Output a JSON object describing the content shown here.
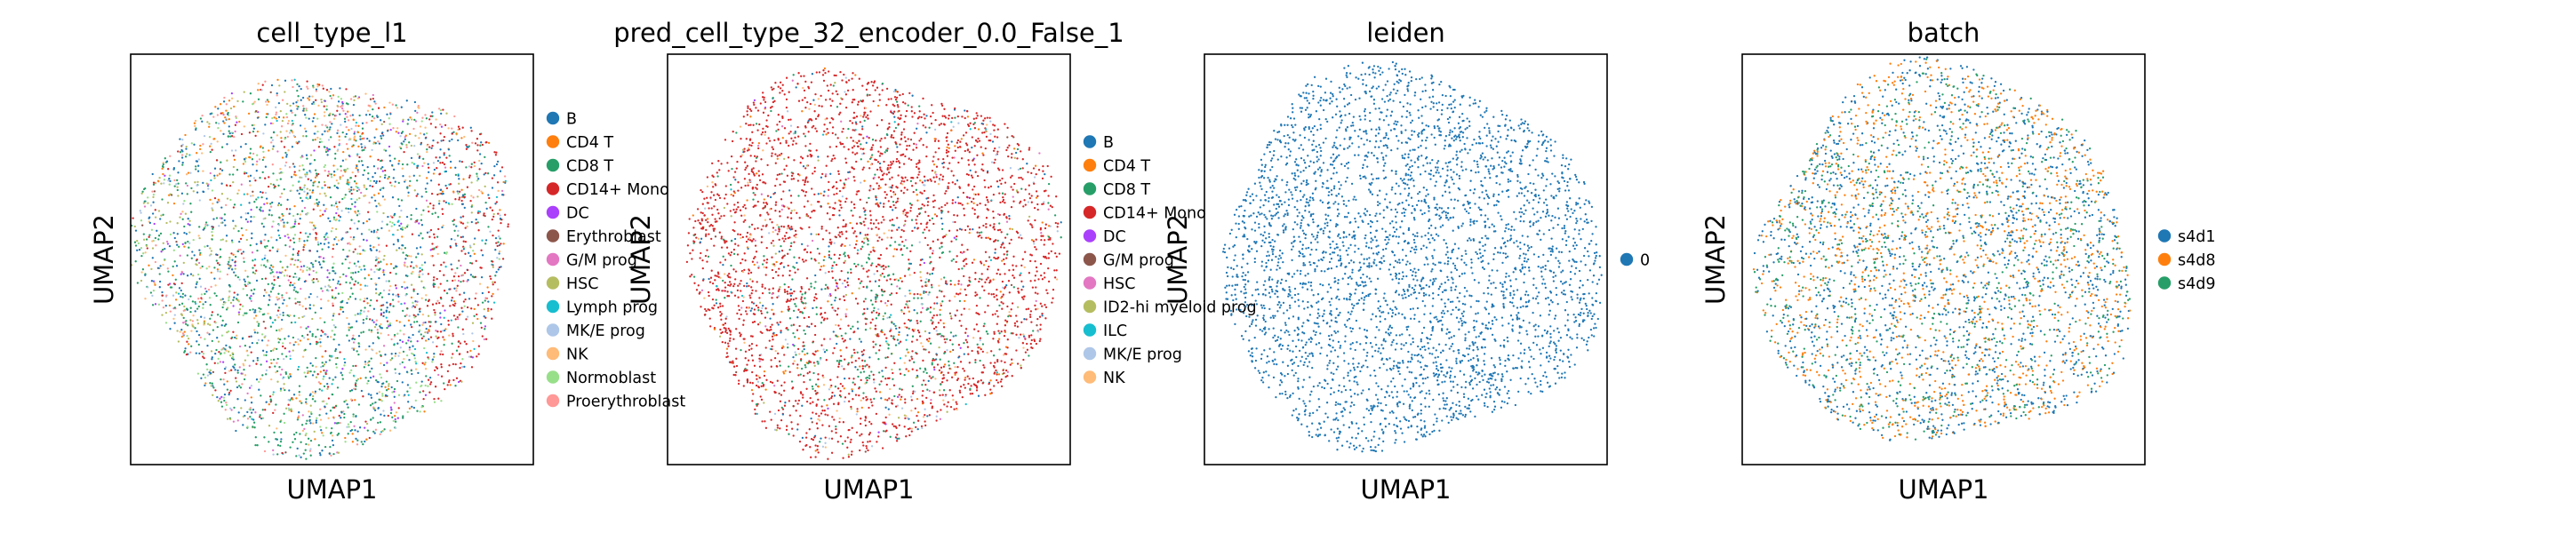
{
  "chart_data": [
    {
      "type": "scatter",
      "title": "cell_type_l1",
      "xlabel": "UMAP1",
      "ylabel": "UMAP2",
      "grid": false,
      "legend_position": "right",
      "legend": [
        {
          "label": "B",
          "color": "#1f77b4"
        },
        {
          "label": "CD4 T",
          "color": "#ff7f0e"
        },
        {
          "label": "CD8 T",
          "color": "#279e68"
        },
        {
          "label": "CD14+ Mono",
          "color": "#d62728"
        },
        {
          "label": "DC",
          "color": "#aa40fc"
        },
        {
          "label": "Erythroblast",
          "color": "#8c564b"
        },
        {
          "label": "G/M prog",
          "color": "#e377c2"
        },
        {
          "label": "HSC",
          "color": "#b5bd61"
        },
        {
          "label": "Lymph prog",
          "color": "#17becf"
        },
        {
          "label": "MK/E prog",
          "color": "#aec7e8"
        },
        {
          "label": "NK",
          "color": "#ffbb78"
        },
        {
          "label": "Normoblast",
          "color": "#98df8a"
        },
        {
          "label": "Proerythroblast",
          "color": "#ff9896"
        }
      ]
    },
    {
      "type": "scatter",
      "title": "pred_cell_type_32_encoder_0.0_False_1",
      "xlabel": "UMAP1",
      "ylabel": "UMAP2",
      "grid": false,
      "legend_position": "right",
      "legend": [
        {
          "label": "B",
          "color": "#1f77b4"
        },
        {
          "label": "CD4 T",
          "color": "#ff7f0e"
        },
        {
          "label": "CD8 T",
          "color": "#279e68"
        },
        {
          "label": "CD14+ Mono",
          "color": "#d62728"
        },
        {
          "label": "DC",
          "color": "#aa40fc"
        },
        {
          "label": "G/M prog",
          "color": "#8c564b"
        },
        {
          "label": "HSC",
          "color": "#e377c2"
        },
        {
          "label": "ID2-hi myeloid prog",
          "color": "#b5bd61"
        },
        {
          "label": "ILC",
          "color": "#17becf"
        },
        {
          "label": "MK/E prog",
          "color": "#aec7e8"
        },
        {
          "label": "NK",
          "color": "#ffbb78"
        }
      ]
    },
    {
      "type": "scatter",
      "title": "leiden",
      "xlabel": "UMAP1",
      "ylabel": "UMAP2",
      "grid": false,
      "legend_position": "right",
      "legend": [
        {
          "label": "0",
          "color": "#1f77b4"
        }
      ]
    },
    {
      "type": "scatter",
      "title": "batch",
      "xlabel": "UMAP1",
      "ylabel": "UMAP2",
      "grid": false,
      "legend_position": "right",
      "legend": [
        {
          "label": "s4d1",
          "color": "#1f77b4"
        },
        {
          "label": "s4d8",
          "color": "#ff7f0e"
        },
        {
          "label": "s4d9",
          "color": "#279e68"
        }
      ]
    }
  ]
}
